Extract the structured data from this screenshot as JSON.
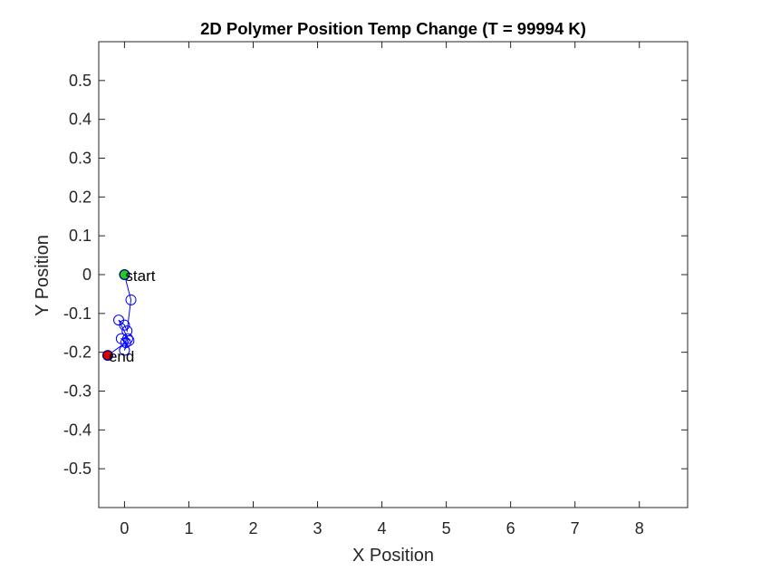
{
  "chart_data": {
    "type": "line",
    "title": "2D Polymer Position Temp Change (T = 99994 K)",
    "xlabel": "X Position",
    "ylabel": "Y Position",
    "xlim": [
      -0.4,
      8.75
    ],
    "ylim": [
      -0.6,
      0.6
    ],
    "xticks": [
      0,
      1,
      2,
      3,
      4,
      5,
      6,
      7,
      8
    ],
    "yticks": [
      -0.5,
      -0.4,
      -0.3,
      -0.2,
      -0.1,
      0,
      0.1,
      0.2,
      0.3,
      0.4,
      0.5
    ],
    "grid": false,
    "series": [
      {
        "x": [
          0,
          0.1,
          0.04,
          0.0,
          -0.09,
          0.07,
          0.0,
          0.05,
          -0.05,
          0.02,
          -0.26
        ],
        "y": [
          0,
          -0.065,
          -0.145,
          -0.13,
          -0.117,
          -0.17,
          -0.195,
          -0.165,
          -0.165,
          -0.175,
          -0.208
        ]
      }
    ],
    "annotations": [
      {
        "text": "start",
        "x": 0,
        "y": 0
      },
      {
        "text": "end",
        "x": -0.26,
        "y": -0.208
      }
    ],
    "colors": {
      "line": "#0000ff",
      "start_marker": "#22cc22",
      "end_marker": "#dd0000",
      "axes": "#262626"
    }
  }
}
